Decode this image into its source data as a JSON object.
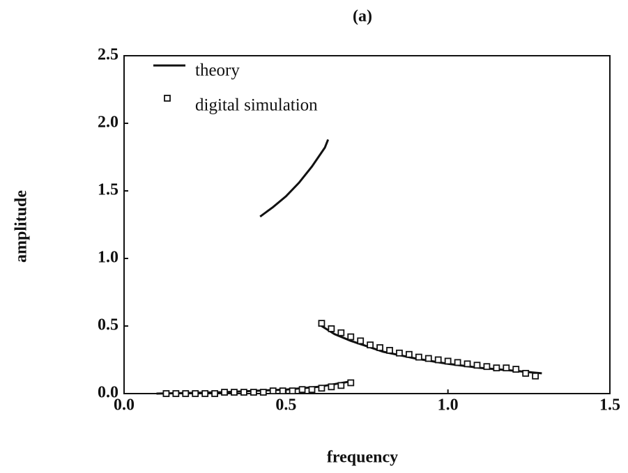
{
  "chart_data": {
    "type": "line",
    "title": "(a)",
    "xlabel": "frequency",
    "ylabel": "amplitude",
    "xlim": [
      0,
      1.5
    ],
    "ylim": [
      0,
      2.5
    ],
    "xticks": [
      {
        "value": 0,
        "label": "0.0"
      },
      0.5,
      {
        "value": 1,
        "label": "1.0"
      },
      1.5
    ],
    "yticks": [
      {
        "value": 0,
        "label": "0.0"
      },
      0.5,
      {
        "value": 1,
        "label": "1.0"
      },
      1.5,
      {
        "value": 2,
        "label": "2.0"
      },
      2.5
    ],
    "legend": "upper left",
    "series": [
      {
        "name": "theory",
        "type": "line",
        "color": "#111111",
        "x": [
          0.1,
          0.3,
          0.5,
          0.6,
          0.7,
          null,
          0.42,
          0.46,
          0.5,
          0.54,
          0.58,
          0.62,
          0.63,
          null,
          0.61,
          0.65,
          0.7,
          0.75,
          0.8,
          0.9,
          1.0,
          1.1,
          1.2,
          1.29
        ],
        "values": [
          0.0,
          0.01,
          0.03,
          0.05,
          0.09,
          null,
          1.31,
          1.38,
          1.46,
          1.56,
          1.68,
          1.82,
          1.88,
          null,
          0.5,
          0.44,
          0.39,
          0.35,
          0.31,
          0.26,
          0.22,
          0.19,
          0.17,
          0.15
        ]
      },
      {
        "name": "digital simulation",
        "type": "scatter",
        "color": "#111111",
        "x": [
          0.13,
          0.16,
          0.19,
          0.22,
          0.25,
          0.28,
          0.31,
          0.34,
          0.37,
          0.4,
          0.43,
          0.46,
          0.49,
          0.52,
          0.55,
          0.58,
          0.61,
          0.64,
          0.67,
          0.7,
          0.61,
          0.64,
          0.67,
          0.7,
          0.73,
          0.76,
          0.79,
          0.82,
          0.85,
          0.88,
          0.91,
          0.94,
          0.97,
          1.0,
          1.03,
          1.06,
          1.09,
          1.12,
          1.15,
          1.18,
          1.21,
          1.24,
          1.27
        ],
        "values": [
          0,
          0,
          0,
          0,
          0,
          0,
          0.01,
          0.01,
          0.01,
          0.01,
          0.01,
          0.02,
          0.02,
          0.02,
          0.03,
          0.03,
          0.04,
          0.05,
          0.06,
          0.08,
          0.52,
          0.48,
          0.45,
          0.42,
          0.39,
          0.36,
          0.34,
          0.32,
          0.3,
          0.29,
          0.27,
          0.26,
          0.25,
          0.24,
          0.23,
          0.22,
          0.21,
          0.2,
          0.19,
          0.19,
          0.18,
          0.15,
          0.13
        ]
      }
    ]
  }
}
